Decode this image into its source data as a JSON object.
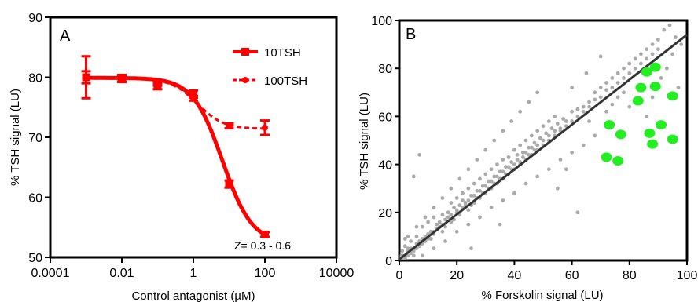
{
  "chart_data": [
    {
      "panel": "A",
      "type": "line",
      "xlabel": "Control antagonist (µM)",
      "ylabel": "% TSH signal (LU)",
      "xscale": "log",
      "xlim": [
        0.0001,
        10000
      ],
      "ylim": [
        50,
        90
      ],
      "xticks": [
        0.0001,
        0.01,
        1,
        100,
        10000
      ],
      "xtick_labels": [
        "0.0001",
        "0.01",
        "1",
        "100",
        "10000"
      ],
      "yticks": [
        50,
        60,
        70,
        80,
        90
      ],
      "ytick_labels": [
        "50",
        "60",
        "70",
        "80",
        "90"
      ],
      "annotation": "Z= 0.3 - 0.6",
      "legend_position": "top-right",
      "grid": false,
      "series": [
        {
          "name": "10TSH",
          "color": "#ff0000",
          "marker": "square",
          "line_style": "solid",
          "x": [
            0.001,
            0.01,
            0.1,
            1,
            10,
            100
          ],
          "y": [
            80.0,
            79.8,
            78.5,
            77.2,
            62.2,
            53.8
          ],
          "error": [
            3.5,
            0.6,
            0.5,
            0.6,
            0.6,
            0.4
          ],
          "fit": {
            "top": 79.9,
            "bottom": 52.3,
            "ec50": 6.5,
            "hill": 1.05
          }
        },
        {
          "name": "100TSH",
          "color": "#ff0000",
          "marker": "circle",
          "line_style": "dashed",
          "x": [
            0.001,
            0.01,
            0.1,
            1,
            10,
            100
          ],
          "y": [
            80.0,
            79.8,
            79.0,
            76.5,
            71.9,
            71.6
          ],
          "error": [
            1.0,
            0.5,
            0.4,
            0.4,
            0.4,
            1.2
          ],
          "fit": {
            "top": 79.8,
            "bottom": 71.4,
            "ec50": 1.3,
            "hill": 1.2
          }
        }
      ]
    },
    {
      "panel": "B",
      "type": "scatter",
      "xlabel": "% Forskolin signal (LU)",
      "ylabel": "% TSH signal (LU)",
      "xlim": [
        0,
        100
      ],
      "ylim": [
        0,
        100
      ],
      "xticks": [
        0,
        20,
        40,
        60,
        80,
        100
      ],
      "yticks": [
        0,
        20,
        40,
        60,
        80,
        100
      ],
      "grid": false,
      "regression_line": {
        "color": "#333333",
        "x": [
          0,
          100
        ],
        "y": [
          0.5,
          94
        ]
      },
      "series": [
        {
          "name": "",
          "color": "#aaaaaa",
          "marker": "small-circle",
          "points": [
            [
              1,
              2
            ],
            [
              2,
              1
            ],
            [
              3,
              4
            ],
            [
              4,
              3
            ],
            [
              2,
              6
            ],
            [
              5,
              2
            ],
            [
              3,
              5
            ],
            [
              6,
              7
            ],
            [
              5,
              5
            ],
            [
              7,
              6
            ],
            [
              4,
              8
            ],
            [
              8,
              9
            ],
            [
              6,
              10
            ],
            [
              9,
              8
            ],
            [
              10,
              11
            ],
            [
              8,
              14
            ],
            [
              12,
              12
            ],
            [
              11,
              9
            ],
            [
              13,
              15
            ],
            [
              10,
              16
            ],
            [
              14,
              14
            ],
            [
              15,
              12
            ],
            [
              12,
              18
            ],
            [
              16,
              17
            ],
            [
              17,
              20
            ],
            [
              15,
              19
            ],
            [
              18,
              16
            ],
            [
              19,
              22
            ],
            [
              20,
              21
            ],
            [
              18,
              24
            ],
            [
              21,
              19
            ],
            [
              22,
              25
            ],
            [
              20,
              26
            ],
            [
              23,
              23
            ],
            [
              24,
              21
            ],
            [
              22,
              28
            ],
            [
              25,
              27
            ],
            [
              26,
              24
            ],
            [
              24,
              30
            ],
            [
              27,
              29
            ],
            [
              28,
              26
            ],
            [
              26,
              32
            ],
            [
              29,
              31
            ],
            [
              30,
              28
            ],
            [
              28,
              34
            ],
            [
              31,
              33
            ],
            [
              32,
              30
            ],
            [
              30,
              36
            ],
            [
              33,
              35
            ],
            [
              34,
              32
            ],
            [
              32,
              38
            ],
            [
              35,
              37
            ],
            [
              36,
              34
            ],
            [
              34,
              40
            ],
            [
              37,
              39
            ],
            [
              38,
              36
            ],
            [
              36,
              42
            ],
            [
              39,
              41
            ],
            [
              40,
              38
            ],
            [
              38,
              43
            ],
            [
              41,
              44
            ],
            [
              42,
              40
            ],
            [
              40,
              46
            ],
            [
              43,
              45
            ],
            [
              44,
              42
            ],
            [
              42,
              48
            ],
            [
              45,
              47
            ],
            [
              46,
              44
            ],
            [
              44,
              50
            ],
            [
              47,
              49
            ],
            [
              48,
              46
            ],
            [
              46,
              52
            ],
            [
              49,
              51
            ],
            [
              50,
              48
            ],
            [
              48,
              54
            ],
            [
              51,
              53
            ],
            [
              52,
              50
            ],
            [
              50,
              56
            ],
            [
              53,
              55
            ],
            [
              54,
              52
            ],
            [
              52,
              58
            ],
            [
              55,
              57
            ],
            [
              56,
              54
            ],
            [
              54,
              60
            ],
            [
              57,
              59
            ],
            [
              58,
              56
            ],
            [
              60,
              62
            ],
            [
              62,
              60
            ],
            [
              64,
              64
            ],
            [
              66,
              66
            ],
            [
              68,
              70
            ],
            [
              70,
              72
            ],
            [
              72,
              74
            ],
            [
              74,
              76
            ],
            [
              76,
              78
            ],
            [
              78,
              80
            ],
            [
              80,
              82
            ],
            [
              82,
              84
            ],
            [
              84,
              86
            ],
            [
              86,
              88
            ],
            [
              88,
              90
            ],
            [
              90,
              92
            ],
            [
              92,
              96
            ],
            [
              94,
              98
            ],
            [
              96,
              93
            ],
            [
              98,
              90
            ],
            [
              95,
              86
            ],
            [
              93,
              80
            ],
            [
              91,
              76
            ],
            [
              97,
              72
            ],
            [
              3,
              10
            ],
            [
              6,
              14
            ],
            [
              9,
              18
            ],
            [
              12,
              22
            ],
            [
              15,
              26
            ],
            [
              18,
              30
            ],
            [
              21,
              34
            ],
            [
              24,
              38
            ],
            [
              27,
              42
            ],
            [
              30,
              46
            ],
            [
              33,
              50
            ],
            [
              36,
              54
            ],
            [
              39,
              58
            ],
            [
              42,
              62
            ],
            [
              45,
              66
            ],
            [
              48,
              70
            ],
            [
              8,
              2
            ],
            [
              12,
              5
            ],
            [
              16,
              8
            ],
            [
              20,
              12
            ],
            [
              24,
              15
            ],
            [
              28,
              18
            ],
            [
              32,
              22
            ],
            [
              36,
              25
            ],
            [
              40,
              28
            ],
            [
              44,
              32
            ],
            [
              48,
              35
            ],
            [
              52,
              38
            ],
            [
              56,
              42
            ],
            [
              60,
              45
            ],
            [
              64,
              48
            ],
            [
              68,
              52
            ],
            [
              60,
              72
            ],
            [
              65,
              78
            ],
            [
              70,
              85
            ],
            [
              62,
              20
            ],
            [
              55,
              30
            ],
            [
              58,
              38
            ],
            [
              66,
              58
            ],
            [
              72,
              62
            ],
            [
              74,
              65
            ],
            [
              76,
              68
            ],
            [
              78,
              70
            ],
            [
              80,
              64
            ],
            [
              84,
              72
            ],
            [
              86,
              60
            ],
            [
              88,
              68
            ],
            [
              7,
              44
            ],
            [
              5,
              35
            ],
            [
              35,
              15
            ],
            [
              25,
              5
            ],
            [
              2,
              9
            ],
            [
              1,
              4
            ],
            [
              0.5,
              1
            ],
            [
              0.8,
              2
            ],
            [
              1.5,
              1
            ],
            [
              3,
              2
            ],
            [
              4,
              5
            ],
            [
              5,
              4
            ],
            [
              6,
              5
            ],
            [
              7,
              8
            ],
            [
              8,
              7
            ],
            [
              9,
              10
            ],
            [
              10,
              9
            ],
            [
              11,
              12
            ],
            [
              12,
              11
            ],
            [
              13,
              13
            ],
            [
              14,
              16
            ],
            [
              15,
              15
            ],
            [
              16,
              14
            ],
            [
              17,
              18
            ],
            [
              18,
              19
            ],
            [
              19,
              17
            ],
            [
              20,
              20
            ],
            [
              21,
              23
            ],
            [
              22,
              22
            ],
            [
              23,
              24
            ],
            [
              24,
              25
            ],
            [
              25,
              23
            ],
            [
              26,
              27
            ],
            [
              27,
              26
            ],
            [
              28,
              29
            ],
            [
              29,
              28
            ],
            [
              30,
              31
            ],
            [
              31,
              30
            ],
            [
              32,
              33
            ],
            [
              33,
              32
            ],
            [
              34,
              35
            ],
            [
              35,
              34
            ],
            [
              36,
              37
            ],
            [
              37,
              36
            ],
            [
              38,
              39
            ],
            [
              39,
              38
            ],
            [
              40,
              40
            ],
            [
              41,
              42
            ],
            [
              42,
              41
            ],
            [
              43,
              43
            ],
            [
              44,
              45
            ],
            [
              45,
              44
            ],
            [
              46,
              47
            ],
            [
              47,
              46
            ],
            [
              48,
              48
            ],
            [
              50,
              50
            ],
            [
              52,
              52
            ],
            [
              54,
              54
            ],
            [
              56,
              55
            ],
            [
              58,
              58
            ],
            [
              60,
              58
            ],
            [
              62,
              63
            ],
            [
              64,
              62
            ],
            [
              66,
              64
            ],
            [
              68,
              67
            ],
            [
              70,
              68
            ],
            [
              72,
              71
            ],
            [
              74,
              72
            ],
            [
              76,
              74
            ],
            [
              78,
              76
            ],
            [
              80,
              78
            ],
            [
              82,
              80
            ],
            [
              84,
              82
            ],
            [
              86,
              84
            ],
            [
              88,
              86
            ],
            [
              90,
              88
            ]
          ]
        },
        {
          "name": "",
          "color": "#22ee22",
          "marker": "large-ellipse",
          "points": [
            [
              72,
              43
            ],
            [
              76,
              41.5
            ],
            [
              73,
              56.5
            ],
            [
              77,
              52.5
            ],
            [
              83,
              66.5
            ],
            [
              84,
              72
            ],
            [
              86,
              78.5
            ],
            [
              89,
              80.5
            ],
            [
              89,
              72.5
            ],
            [
              95,
              68.5
            ],
            [
              87,
              53
            ],
            [
              88,
              48.5
            ],
            [
              91,
              56.5
            ],
            [
              95,
              50.5
            ]
          ]
        }
      ]
    }
  ],
  "legend": {
    "entry1": "10TSH",
    "entry2": "100TSH"
  }
}
